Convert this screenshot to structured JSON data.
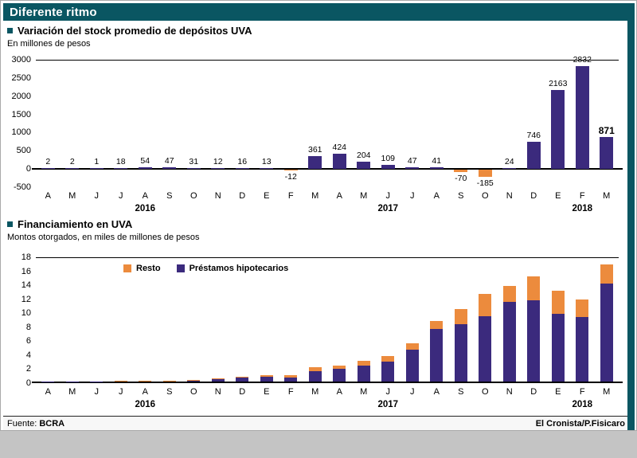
{
  "page": {
    "title": "Diferente ritmo",
    "accent_color": "#0a5662"
  },
  "footer": {
    "source_label": "Fuente:",
    "source_value": "BCRA",
    "credit": "El Cronista/P.Fisicaro"
  },
  "chart_data": [
    {
      "type": "bar",
      "title": "Variación del stock promedio de depósitos UVA",
      "subtitle": "En millones de pesos",
      "categories": [
        "A",
        "M",
        "J",
        "J",
        "A",
        "S",
        "O",
        "N",
        "D",
        "E",
        "F",
        "M",
        "A",
        "M",
        "J",
        "J",
        "A",
        "S",
        "O",
        "N",
        "D",
        "E",
        "F",
        "M"
      ],
      "year_labels": [
        {
          "label": "2016",
          "index": 4
        },
        {
          "label": "2017",
          "index": 14
        },
        {
          "label": "2018",
          "index": 22
        }
      ],
      "values": [
        2,
        2,
        1,
        18,
        54,
        47,
        31,
        12,
        16,
        13,
        -12,
        361,
        424,
        204,
        109,
        47,
        41,
        -70,
        -185,
        24,
        746,
        2163,
        2832,
        871
      ],
      "ylim": [
        -500,
        3000
      ],
      "yticks": [
        3000,
        2500,
        2000,
        1500,
        1000,
        500,
        0,
        -500
      ],
      "bar_color": "#3b2a7d",
      "negative_color": "#ec8b3d",
      "emphasis_last": true,
      "grid": false,
      "legend_position": "none"
    },
    {
      "type": "stacked-bar",
      "title": "Financiamiento en UVA",
      "subtitle": "Montos otorgados, en miles de millones de pesos",
      "categories": [
        "A",
        "M",
        "J",
        "J",
        "A",
        "S",
        "O",
        "N",
        "D",
        "E",
        "F",
        "M",
        "A",
        "M",
        "J",
        "J",
        "A",
        "S",
        "O",
        "N",
        "D",
        "E",
        "F",
        "M"
      ],
      "year_labels": [
        {
          "label": "2016",
          "index": 4
        },
        {
          "label": "2017",
          "index": 14
        },
        {
          "label": "2018",
          "index": 22
        }
      ],
      "series": [
        {
          "name": "Resto",
          "color": "#ec8b3d",
          "values": [
            0.0,
            0.0,
            0.01,
            0.02,
            0.03,
            0.04,
            0.05,
            0.1,
            0.15,
            0.2,
            0.3,
            0.5,
            0.5,
            0.7,
            0.8,
            0.9,
            1.2,
            2.2,
            3.2,
            2.3,
            3.4,
            3.3,
            2.5,
            2.7
          ]
        },
        {
          "name": "Préstamos hipotecarios",
          "color": "#3b2a7d",
          "values": [
            0.02,
            0.03,
            0.04,
            0.06,
            0.1,
            0.13,
            0.2,
            0.3,
            0.55,
            0.7,
            0.6,
            1.5,
            1.8,
            2.3,
            2.9,
            4.6,
            7.5,
            8.2,
            9.3,
            11.4,
            11.6,
            9.7,
            9.2,
            14.0
          ]
        }
      ],
      "ylim": [
        0,
        18
      ],
      "yticks": [
        18,
        16,
        14,
        12,
        10,
        8,
        6,
        4,
        2,
        0
      ],
      "grid": false,
      "legend_position": "top-left-inside"
    }
  ]
}
